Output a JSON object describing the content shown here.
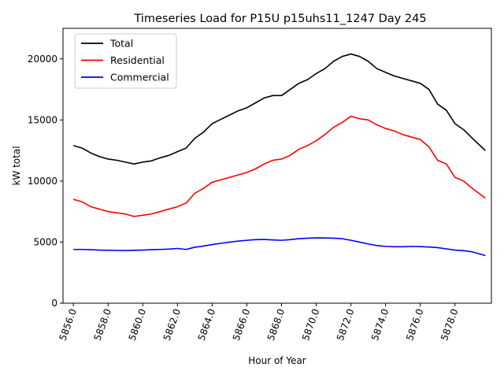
{
  "chart_data": {
    "type": "line",
    "title": "Timeseries Load for P15U p15uhs11_1247  Day 245",
    "xlabel": "Hour of Year",
    "ylabel": "kW total",
    "xlim": [
      5855.4,
      5880.1
    ],
    "ylim": [
      0,
      22500
    ],
    "xticks": [
      5856.0,
      5858.0,
      5860.0,
      5862.0,
      5864.0,
      5866.0,
      5868.0,
      5870.0,
      5872.0,
      5874.0,
      5876.0,
      5878.0
    ],
    "xtick_labels": [
      "5856.0",
      "5858.0",
      "5860.0",
      "5862.0",
      "5864.0",
      "5866.0",
      "5868.0",
      "5870.0",
      "5872.0",
      "5874.0",
      "5876.0",
      "5878.0"
    ],
    "yticks": [
      0,
      5000,
      10000,
      15000,
      20000
    ],
    "ytick_labels": [
      "0",
      "5000",
      "10000",
      "15000",
      "20000"
    ],
    "legend_position": "top-left",
    "x": [
      5856.0,
      5856.5,
      5857.0,
      5857.5,
      5858.0,
      5858.5,
      5859.0,
      5859.5,
      5860.0,
      5860.5,
      5861.0,
      5861.5,
      5862.0,
      5862.5,
      5863.0,
      5863.5,
      5864.0,
      5864.5,
      5865.0,
      5865.5,
      5866.0,
      5866.5,
      5867.0,
      5867.5,
      5868.0,
      5868.5,
      5869.0,
      5869.5,
      5870.0,
      5870.5,
      5871.0,
      5871.5,
      5872.0,
      5872.5,
      5873.0,
      5873.5,
      5874.0,
      5874.5,
      5875.0,
      5875.5,
      5876.0,
      5876.5,
      5877.0,
      5877.5,
      5878.0,
      5878.5,
      5879.0,
      5879.75
    ],
    "series": [
      {
        "name": "Total",
        "color": "#000000",
        "values": [
          12900,
          12700,
          12300,
          12000,
          11800,
          11700,
          11550,
          11400,
          11550,
          11650,
          11900,
          12100,
          12400,
          12700,
          13500,
          14000,
          14700,
          15050,
          15400,
          15750,
          16000,
          16400,
          16800,
          17000,
          17000,
          17500,
          18000,
          18300,
          18800,
          19200,
          19800,
          20200,
          20400,
          20200,
          19800,
          19200,
          18900,
          18600,
          18400,
          18200,
          18000,
          17500,
          16300,
          15800,
          14700,
          14200,
          13500,
          12500
        ]
      },
      {
        "name": "Residential",
        "color": "#ff0000",
        "values": [
          8500,
          8300,
          7900,
          7700,
          7500,
          7400,
          7300,
          7100,
          7200,
          7300,
          7500,
          7700,
          7900,
          8200,
          9000,
          9400,
          9900,
          10100,
          10300,
          10500,
          10700,
          11000,
          11400,
          11700,
          11800,
          12100,
          12600,
          12900,
          13300,
          13800,
          14400,
          14800,
          15300,
          15100,
          15000,
          14600,
          14300,
          14100,
          13800,
          13600,
          13400,
          12800,
          11700,
          11400,
          10300,
          10000,
          9400,
          8600
        ]
      },
      {
        "name": "Commercial",
        "color": "#0000ff",
        "values": [
          4400,
          4400,
          4380,
          4350,
          4330,
          4320,
          4310,
          4330,
          4350,
          4380,
          4400,
          4430,
          4480,
          4400,
          4580,
          4680,
          4800,
          4900,
          5000,
          5080,
          5150,
          5200,
          5220,
          5180,
          5150,
          5200,
          5280,
          5320,
          5350,
          5340,
          5320,
          5280,
          5150,
          5000,
          4850,
          4720,
          4650,
          4620,
          4620,
          4650,
          4630,
          4600,
          4550,
          4450,
          4350,
          4300,
          4200,
          3900
        ]
      }
    ]
  }
}
